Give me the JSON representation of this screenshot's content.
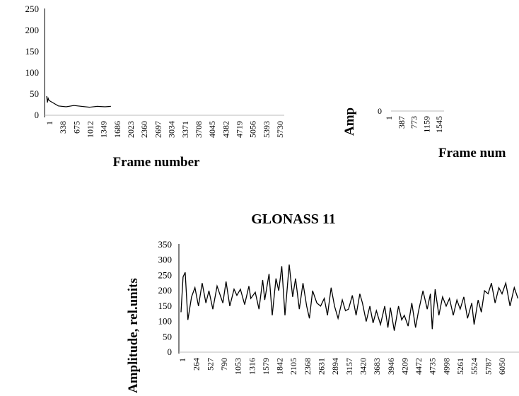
{
  "chart_data": [
    {
      "type": "line",
      "title": "",
      "xlabel": "Frame number",
      "ylabel": "",
      "ylim": [
        0,
        250
      ],
      "yticks": [
        0,
        50,
        100,
        150,
        200,
        250
      ],
      "x_tick_labels": [
        "1",
        "338",
        "675",
        "1012",
        "1349",
        "1686",
        "2023",
        "2360",
        "2697",
        "3034",
        "3371",
        "3708",
        "4045",
        "4382",
        "4719",
        "5056",
        "5393",
        "5730"
      ],
      "series": [
        {
          "values": [
            {
              "x": 1,
              "y": 45
            },
            {
              "x": 20,
              "y": 30
            },
            {
              "x": 40,
              "y": 40
            },
            {
              "x": 60,
              "y": 35
            },
            {
              "x": 300,
              "y": 22
            },
            {
              "x": 500,
              "y": 20
            },
            {
              "x": 700,
              "y": 23
            },
            {
              "x": 1100,
              "y": 19
            },
            {
              "x": 1300,
              "y": 21
            },
            {
              "x": 1500,
              "y": 20
            },
            {
              "x": 1650,
              "y": 21
            }
          ]
        }
      ],
      "grid": false
    },
    {
      "type": "line",
      "title": "",
      "xlabel": "Frame num",
      "ylabel": "Amp",
      "yticks": [
        0
      ],
      "x_tick_labels": [
        "1",
        "387",
        "773",
        "1159",
        "1545"
      ],
      "series": [],
      "grid": false
    },
    {
      "type": "line",
      "title": "GLONASS 11",
      "xlabel": "",
      "ylabel": "Amplitude, rel.units",
      "ylim": [
        0,
        350
      ],
      "yticks": [
        0,
        50,
        100,
        150,
        200,
        250,
        300,
        350
      ],
      "x_tick_labels": [
        "1",
        "264",
        "527",
        "790",
        "1053",
        "1316",
        "1579",
        "1842",
        "2105",
        "2368",
        "2631",
        "2894",
        "3157",
        "3420",
        "3683",
        "3946",
        "4209",
        "4472",
        "4735",
        "4998",
        "5261",
        "5524",
        "5787",
        "6050"
      ],
      "series": [
        {
          "values": [
            {
              "x": 1,
              "y": 130
            },
            {
              "x": 40,
              "y": 245
            },
            {
              "x": 80,
              "y": 260
            },
            {
              "x": 130,
              "y": 105
            },
            {
              "x": 200,
              "y": 180
            },
            {
              "x": 264,
              "y": 210
            },
            {
              "x": 330,
              "y": 150
            },
            {
              "x": 400,
              "y": 225
            },
            {
              "x": 470,
              "y": 160
            },
            {
              "x": 527,
              "y": 200
            },
            {
              "x": 600,
              "y": 140
            },
            {
              "x": 680,
              "y": 215
            },
            {
              "x": 790,
              "y": 160
            },
            {
              "x": 850,
              "y": 230
            },
            {
              "x": 920,
              "y": 150
            },
            {
              "x": 1000,
              "y": 205
            },
            {
              "x": 1053,
              "y": 185
            },
            {
              "x": 1120,
              "y": 205
            },
            {
              "x": 1200,
              "y": 155
            },
            {
              "x": 1280,
              "y": 215
            },
            {
              "x": 1316,
              "y": 175
            },
            {
              "x": 1400,
              "y": 195
            },
            {
              "x": 1470,
              "y": 140
            },
            {
              "x": 1540,
              "y": 235
            },
            {
              "x": 1579,
              "y": 170
            },
            {
              "x": 1660,
              "y": 255
            },
            {
              "x": 1720,
              "y": 120
            },
            {
              "x": 1790,
              "y": 240
            },
            {
              "x": 1842,
              "y": 200
            },
            {
              "x": 1900,
              "y": 280
            },
            {
              "x": 1960,
              "y": 120
            },
            {
              "x": 2040,
              "y": 285
            },
            {
              "x": 2105,
              "y": 180
            },
            {
              "x": 2160,
              "y": 240
            },
            {
              "x": 2230,
              "y": 140
            },
            {
              "x": 2300,
              "y": 225
            },
            {
              "x": 2368,
              "y": 150
            },
            {
              "x": 2420,
              "y": 110
            },
            {
              "x": 2480,
              "y": 200
            },
            {
              "x": 2560,
              "y": 160
            },
            {
              "x": 2631,
              "y": 150
            },
            {
              "x": 2700,
              "y": 175
            },
            {
              "x": 2760,
              "y": 120
            },
            {
              "x": 2830,
              "y": 210
            },
            {
              "x": 2894,
              "y": 150
            },
            {
              "x": 2960,
              "y": 110
            },
            {
              "x": 3040,
              "y": 170
            },
            {
              "x": 3100,
              "y": 135
            },
            {
              "x": 3157,
              "y": 140
            },
            {
              "x": 3230,
              "y": 185
            },
            {
              "x": 3300,
              "y": 120
            },
            {
              "x": 3370,
              "y": 190
            },
            {
              "x": 3420,
              "y": 160
            },
            {
              "x": 3490,
              "y": 100
            },
            {
              "x": 3560,
              "y": 150
            },
            {
              "x": 3620,
              "y": 95
            },
            {
              "x": 3683,
              "y": 135
            },
            {
              "x": 3760,
              "y": 90
            },
            {
              "x": 3840,
              "y": 150
            },
            {
              "x": 3900,
              "y": 80
            },
            {
              "x": 3946,
              "y": 145
            },
            {
              "x": 4020,
              "y": 70
            },
            {
              "x": 4100,
              "y": 150
            },
            {
              "x": 4160,
              "y": 105
            },
            {
              "x": 4209,
              "y": 120
            },
            {
              "x": 4280,
              "y": 85
            },
            {
              "x": 4350,
              "y": 160
            },
            {
              "x": 4420,
              "y": 80
            },
            {
              "x": 4472,
              "y": 130
            },
            {
              "x": 4560,
              "y": 200
            },
            {
              "x": 4640,
              "y": 140
            },
            {
              "x": 4700,
              "y": 190
            },
            {
              "x": 4735,
              "y": 75
            },
            {
              "x": 4790,
              "y": 205
            },
            {
              "x": 4860,
              "y": 120
            },
            {
              "x": 4930,
              "y": 180
            },
            {
              "x": 4998,
              "y": 150
            },
            {
              "x": 5060,
              "y": 175
            },
            {
              "x": 5130,
              "y": 120
            },
            {
              "x": 5200,
              "y": 170
            },
            {
              "x": 5261,
              "y": 140
            },
            {
              "x": 5330,
              "y": 180
            },
            {
              "x": 5400,
              "y": 110
            },
            {
              "x": 5480,
              "y": 160
            },
            {
              "x": 5524,
              "y": 90
            },
            {
              "x": 5600,
              "y": 170
            },
            {
              "x": 5660,
              "y": 130
            },
            {
              "x": 5720,
              "y": 200
            },
            {
              "x": 5787,
              "y": 190
            },
            {
              "x": 5850,
              "y": 225
            },
            {
              "x": 5920,
              "y": 160
            },
            {
              "x": 5990,
              "y": 210
            },
            {
              "x": 6050,
              "y": 190
            },
            {
              "x": 6120,
              "y": 225
            },
            {
              "x": 6200,
              "y": 150
            },
            {
              "x": 6280,
              "y": 210
            },
            {
              "x": 6350,
              "y": 175
            }
          ]
        }
      ],
      "grid": false
    }
  ]
}
